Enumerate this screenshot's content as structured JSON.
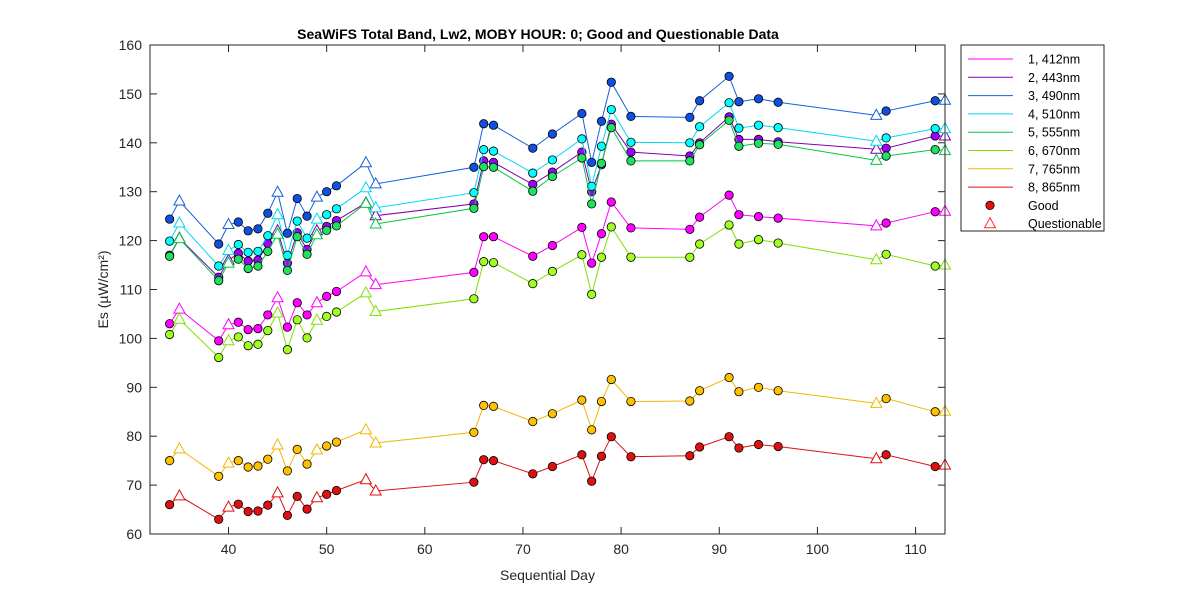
{
  "chart_data": {
    "type": "line",
    "title": "SeaWiFS Total Band,  Lw2, MOBY HOUR: 0;  Good and Questionable Data",
    "xlabel": "Sequential Day",
    "ylabel": "Es (µW/cm²)",
    "xlim": [
      32,
      113
    ],
    "ylim": [
      60,
      160
    ],
    "xticks": [
      40,
      50,
      60,
      70,
      80,
      90,
      100,
      110
    ],
    "yticks": [
      60,
      70,
      80,
      90,
      100,
      110,
      120,
      130,
      140,
      150,
      160
    ],
    "grid": false,
    "legend_position": "outside-right",
    "x": [
      34,
      35,
      39,
      40,
      41,
      42,
      43,
      44,
      45,
      46,
      47,
      48,
      49,
      50,
      51,
      54,
      55,
      65,
      66,
      67,
      71,
      73,
      76,
      77,
      78,
      79,
      81,
      87,
      88,
      91,
      92,
      94,
      96,
      106,
      107,
      112,
      113
    ],
    "quality": [
      "G",
      "Q",
      "G",
      "Q",
      "G",
      "G",
      "G",
      "G",
      "Q",
      "G",
      "G",
      "G",
      "Q",
      "G",
      "G",
      "Q",
      "Q",
      "G",
      "G",
      "G",
      "G",
      "G",
      "G",
      "G",
      "G",
      "G",
      "G",
      "G",
      "G",
      "G",
      "G",
      "G",
      "G",
      "Q",
      "G",
      "G",
      "Q"
    ],
    "series": [
      {
        "name": "1, 412nm",
        "color": "#ff00ff",
        "fill": "#ff00ff",
        "values": [
          103,
          106,
          99.5,
          102.8,
          103.3,
          101.8,
          102,
          104.8,
          108.3,
          102.3,
          107.3,
          104.8,
          107.3,
          108.6,
          109.6,
          113.6,
          111,
          113.5,
          120.8,
          120.8,
          116.8,
          119,
          122.7,
          115.4,
          121.4,
          127.9,
          122.6,
          122.3,
          124.8,
          129.3,
          125.3,
          124.9,
          124.6,
          123,
          123.6,
          125.9,
          126
        ]
      },
      {
        "name": "2, 443nm",
        "color": "#8000b0",
        "fill": "#a000ff",
        "values": [
          117,
          120.5,
          112.5,
          116,
          117.4,
          115.8,
          116,
          119.4,
          122,
          115.4,
          121.6,
          118.2,
          122,
          122.9,
          124.1,
          127.7,
          125.1,
          127.5,
          136.3,
          136,
          131.5,
          134,
          138.1,
          130,
          135.5,
          143.8,
          138.1,
          137.3,
          140,
          145.3,
          140.7,
          140.7,
          140.2,
          138.7,
          138.9,
          141.4,
          141.4
        ]
      },
      {
        "name": "3, 490nm",
        "color": "#1560e0",
        "fill": "#1050e0",
        "values": [
          124.4,
          128.1,
          119.3,
          123.3,
          123.8,
          122,
          122.4,
          125.6,
          129.9,
          121.5,
          128.6,
          125,
          128.9,
          130,
          131.2,
          135.9,
          131.6,
          135,
          143.9,
          143.6,
          138.9,
          141.8,
          146,
          136,
          144.4,
          152.4,
          145.4,
          145.2,
          148.6,
          153.6,
          148.4,
          149,
          148.3,
          145.6,
          146.5,
          148.6,
          148.7
        ]
      },
      {
        "name": "4, 510nm",
        "color": "#00d8f0",
        "fill": "#00ffff",
        "values": [
          119.9,
          123.6,
          114.8,
          118,
          119.2,
          117.6,
          117.8,
          121,
          125.3,
          117,
          124,
          120.5,
          124.4,
          125.3,
          126.5,
          130.8,
          126.7,
          129.8,
          138.6,
          138.3,
          133.8,
          136.5,
          140.8,
          131.1,
          139.3,
          146.8,
          140.1,
          140,
          143.3,
          148.2,
          143,
          143.6,
          143.1,
          140.3,
          141,
          142.9,
          142.9
        ]
      },
      {
        "name": "5, 555nm",
        "color": "#00c840",
        "fill": "#20e060",
        "values": [
          116.8,
          120.4,
          111.8,
          115.4,
          116.2,
          114.3,
          114.8,
          117.8,
          121.3,
          113.9,
          120.8,
          117.2,
          121.2,
          122.1,
          123,
          127.6,
          123.4,
          126.6,
          135.1,
          135,
          130.1,
          133.1,
          136.9,
          127.5,
          135.8,
          143.1,
          136.3,
          136.3,
          139.6,
          144.6,
          139.3,
          139.9,
          139.7,
          136.4,
          137.3,
          138.6,
          138.4
        ]
      },
      {
        "name": "6, 670nm",
        "color": "#80e000",
        "fill": "#a0ff20",
        "values": [
          100.8,
          103.9,
          96.1,
          99.5,
          100.3,
          98.5,
          98.8,
          101.6,
          105.2,
          97.7,
          103.8,
          100.1,
          103.7,
          104.5,
          105.4,
          109.3,
          105.5,
          108.1,
          115.7,
          115.5,
          111.2,
          113.7,
          117.1,
          109,
          116.6,
          122.8,
          116.6,
          116.6,
          119.3,
          123.2,
          119.3,
          120.2,
          119.5,
          116.1,
          117.2,
          114.8,
          115
        ]
      },
      {
        "name": "7, 765nm",
        "color": "#f0b800",
        "fill": "#ffc000",
        "values": [
          75,
          77.4,
          71.8,
          74.5,
          75,
          73.7,
          73.9,
          75.3,
          78.2,
          72.9,
          77.3,
          74.3,
          77.2,
          78,
          78.8,
          81.3,
          78.6,
          80.8,
          86.3,
          86.1,
          83,
          84.6,
          87.4,
          81.3,
          87.1,
          91.6,
          87.1,
          87.2,
          89.3,
          92,
          89.1,
          90,
          89.3,
          86.7,
          87.7,
          85,
          85.1
        ]
      },
      {
        "name": "8, 865nm",
        "color": "#e01010",
        "fill": "#e01010",
        "values": [
          66,
          67.8,
          63,
          65.5,
          66.1,
          64.6,
          64.7,
          65.9,
          68.4,
          63.8,
          67.7,
          65.1,
          67.4,
          68.1,
          68.9,
          71.1,
          68.8,
          70.6,
          75.2,
          75,
          72.3,
          73.8,
          76.2,
          70.8,
          75.9,
          79.9,
          75.8,
          76,
          77.8,
          79.9,
          77.6,
          78.3,
          77.9,
          75.4,
          76.2,
          73.8,
          74.1
        ]
      }
    ],
    "legend": {
      "entries": [
        "1, 412nm",
        "2, 443nm",
        "3, 490nm",
        "4, 510nm",
        "5, 555nm",
        "6, 670nm",
        "7, 765nm",
        "8, 865nm"
      ],
      "markers": [
        {
          "label": "Good",
          "symbol": "circle",
          "color": "#e01010"
        },
        {
          "label": "Questionable",
          "symbol": "triangle",
          "color": "#ff3030"
        }
      ]
    }
  }
}
